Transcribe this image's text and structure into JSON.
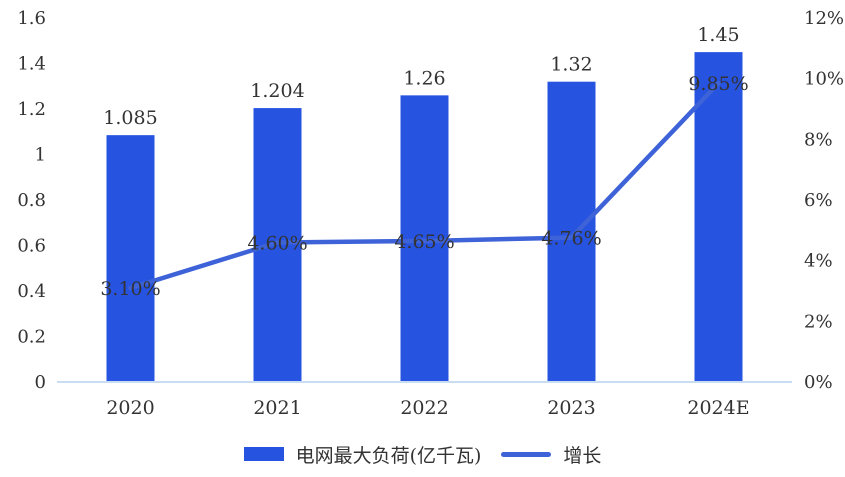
{
  "chart_data": {
    "type": "bar",
    "subtype": "combo-bar-line",
    "title": "",
    "categories": [
      "2020",
      "2021",
      "2022",
      "2023",
      "2024E"
    ],
    "series": [
      {
        "name": "电网最大负荷(亿千瓦)",
        "type": "bar",
        "axis": "left",
        "values": [
          1.085,
          1.204,
          1.26,
          1.32,
          1.45
        ],
        "labels": [
          "1.085",
          "1.204",
          "1.26",
          "1.32",
          "1.45"
        ],
        "color": "#2653e0"
      },
      {
        "name": "增长",
        "type": "line",
        "axis": "right",
        "values": [
          3.1,
          4.6,
          4.65,
          4.76,
          9.85
        ],
        "labels": [
          "3.10%",
          "4.60%",
          "4.65%",
          "4.76%",
          "9.85%"
        ],
        "color": "#3e63d8"
      }
    ],
    "left_axis": {
      "min": 0,
      "max": 1.6,
      "tick_labels": [
        "0",
        "0.2",
        "0.4",
        "0.6",
        "0.8",
        "1",
        "1.2",
        "1.4",
        "1.6"
      ]
    },
    "right_axis": {
      "min": 0,
      "max": 12,
      "tick_labels": [
        "0%",
        "2%",
        "4%",
        "6%",
        "8%",
        "10%",
        "12%"
      ]
    },
    "grid": false,
    "legend_position": "bottom",
    "background_color": "#ffffff",
    "axis_line_color": "#c9ddf2",
    "text_color": "#333333"
  }
}
